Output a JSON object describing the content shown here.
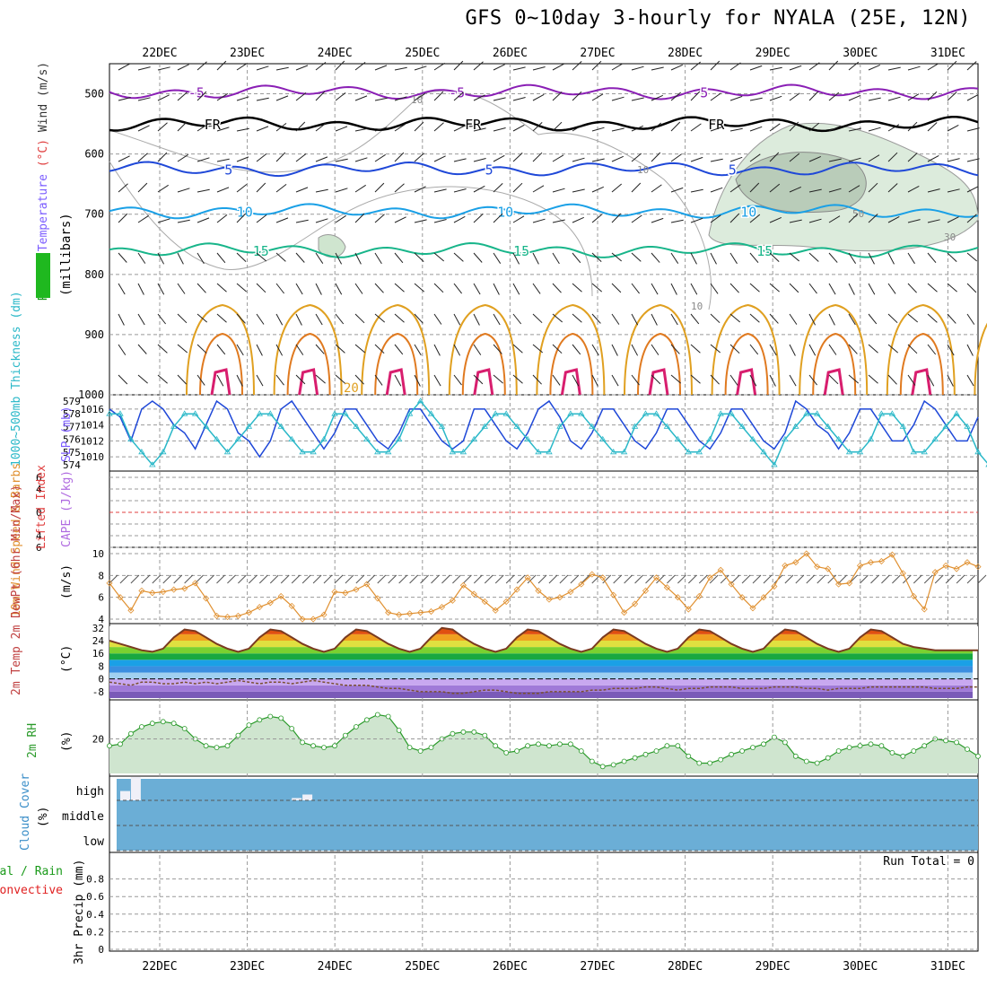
{
  "title": "GFS 0~10day 3-hourly for NYALA (25E, 12N)",
  "dates": [
    "22DEC",
    "23DEC",
    "24DEC",
    "25DEC",
    "26DEC",
    "27DEC",
    "28DEC",
    "29DEC",
    "30DEC",
    "31DEC"
  ],
  "colors": {
    "purple": "#8a1fb5",
    "black": "#000000",
    "blue": "#1f48d8",
    "cyan": "#1aa0e6",
    "green": "#18b58a",
    "orange": "#e0a020",
    "magenta": "#d81e6e",
    "contour_gray": "#aaaaaa",
    "rh_fill": "#cfe5cf",
    "cloud": "#6baed6"
  },
  "chart_data": [
    {
      "panel": "upper-air",
      "type": "line",
      "ylabel_parts": [
        {
          "text": "RH (%)",
          "color": "#1a9a1a"
        },
        {
          "text": "Temperature",
          "color": "#7b5cff"
        },
        {
          "text": "(°C)",
          "color": "#e04040"
        },
        {
          "text": "Wind (m/s)",
          "color": "#333333"
        }
      ],
      "ylabel2": "(millibars)",
      "y_axis": "pressure (mb)",
      "ylim": [
        1000,
        450
      ],
      "y_ticks": [
        500,
        600,
        700,
        800,
        900,
        1000
      ],
      "grid": true,
      "isotherms": [
        {
          "label": "-5",
          "level_mb": 497,
          "color": "#8a1fb5"
        },
        {
          "label": "FR",
          "level_mb": 550,
          "color": "#000000"
        },
        {
          "label": "5",
          "level_mb": 625,
          "color": "#1f48d8"
        },
        {
          "label": "10",
          "level_mb": 695,
          "color": "#1aa0e6"
        },
        {
          "label": "15",
          "level_mb": 760,
          "color": "#18b58a"
        }
      ],
      "surface_contour_labels": [
        "20"
      ],
      "rh_contour_labels": [
        "10",
        "10",
        "10",
        "30",
        "50"
      ]
    },
    {
      "panel": "thickness-slp",
      "type": "line",
      "ylabel_left": "1000~500mb Thickness (dm)",
      "ylabel_right": "SLP (mb)",
      "left_ticks": [
        574,
        575,
        576,
        577,
        578,
        579
      ],
      "right_ticks": [
        1010,
        1012,
        1014,
        1016
      ],
      "series": [
        {
          "name": "SLP",
          "axis": "right",
          "values": [
            1016,
            1015,
            1012,
            1016,
            1017,
            1016,
            1014,
            1013,
            1011,
            1014,
            1017,
            1016,
            1013,
            1012,
            1010,
            1012,
            1016,
            1017,
            1015,
            1013,
            1011,
            1013,
            1016,
            1016,
            1014,
            1012,
            1011,
            1013,
            1016,
            1016,
            1014,
            1012,
            1011,
            1012,
            1016,
            1016,
            1014,
            1012,
            1011,
            1013,
            1016,
            1017,
            1015,
            1012,
            1011,
            1013,
            1016,
            1016,
            1014,
            1012,
            1011,
            1013,
            1016,
            1016,
            1014,
            1012,
            1011,
            1013,
            1016,
            1016,
            1014,
            1012,
            1011,
            1013,
            1017,
            1016,
            1014,
            1013,
            1011,
            1013,
            1016,
            1016,
            1014,
            1012,
            1012,
            1014,
            1017,
            1016,
            1014,
            1012,
            1012,
            1015
          ]
        },
        {
          "name": "Thickness",
          "axis": "left",
          "values": [
            578,
            578,
            576,
            575,
            574,
            575,
            577,
            578,
            578,
            577,
            576,
            575,
            576,
            577,
            578,
            578,
            577,
            576,
            575,
            575,
            576,
            578,
            578,
            577,
            576,
            575,
            575,
            576,
            578,
            579,
            578,
            577,
            575,
            575,
            576,
            577,
            578,
            578,
            577,
            576,
            575,
            575,
            577,
            578,
            578,
            577,
            576,
            575,
            575,
            577,
            578,
            578,
            577,
            576,
            575,
            575,
            576,
            578,
            578,
            577,
            576,
            575,
            574,
            576,
            577,
            578,
            578,
            577,
            576,
            575,
            575,
            576,
            578,
            578,
            577,
            575,
            575,
            576,
            577,
            578,
            577,
            575,
            574,
            575
          ]
        }
      ]
    },
    {
      "panel": "stability",
      "type": "line",
      "ylabel_left": "Lifted Index",
      "ylabel_right": "CAPE (J/kg)",
      "y_ticks": [
        -6,
        -4,
        -2,
        0,
        2,
        4,
        6
      ],
      "series": [
        {
          "name": "Lifted Index",
          "values": []
        },
        {
          "name": "CAPE",
          "values": []
        }
      ]
    },
    {
      "panel": "wind10m",
      "type": "line",
      "ylabel": "10m Wind Speed & Barbs",
      "yunit": "(m/s)",
      "ylim": [
        4,
        10
      ],
      "y_ticks": [
        4,
        6,
        8,
        10
      ],
      "series": [
        {
          "name": "10m wind speed",
          "values": [
            7.3,
            6.0,
            4.8,
            6.6,
            6.4,
            6.5,
            6.7,
            6.8,
            7.3,
            5.9,
            4.3,
            4.2,
            4.3,
            4.6,
            5.1,
            5.5,
            6.1,
            5.2,
            4.0,
            4.0,
            4.4,
            6.5,
            6.4,
            6.7,
            7.2,
            5.9,
            4.6,
            4.4,
            4.5,
            4.6,
            4.7,
            5.1,
            5.7,
            7.1,
            6.3,
            5.6,
            4.8,
            5.6,
            6.7,
            7.8,
            6.6,
            5.8,
            6.0,
            6.5,
            7.2,
            8.1,
            7.8,
            6.2,
            4.6,
            5.4,
            6.6,
            7.8,
            6.9,
            6.0,
            4.9,
            6.1,
            7.8,
            8.5,
            7.2,
            6.0,
            5.0,
            6.0,
            7.0,
            8.9,
            9.2,
            10.0,
            8.8,
            8.6,
            7.2,
            7.3,
            8.9,
            9.2,
            9.3,
            9.9,
            8.2,
            6.1,
            4.9,
            8.3,
            8.9,
            8.6,
            9.2,
            8.8
          ]
        }
      ]
    },
    {
      "panel": "temp2m",
      "type": "line",
      "ylabel": "2m Temp 2m DewPt (6hr Min/Max)",
      "yunit": "(°C)",
      "ylim": [
        -12,
        33
      ],
      "y_ticks": [
        -8,
        0,
        8,
        16,
        24,
        32
      ],
      "series": [
        {
          "name": "2m Temp",
          "values": [
            24,
            22,
            20,
            18,
            17,
            19,
            26,
            31,
            30,
            26,
            22,
            19,
            17,
            19,
            26,
            31,
            30,
            26,
            22,
            19,
            17,
            19,
            26,
            31,
            30,
            26,
            22,
            19,
            17,
            19,
            26,
            32,
            31,
            26,
            22,
            19,
            17,
            19,
            26,
            31,
            30,
            26,
            22,
            19,
            17,
            19,
            26,
            31,
            30,
            26,
            22,
            19,
            17,
            19,
            26,
            31,
            30,
            26,
            22,
            19,
            17,
            19,
            26,
            31,
            30,
            26,
            22,
            19,
            17,
            19,
            26,
            31,
            30,
            26,
            22,
            20,
            19,
            18,
            18,
            18,
            18,
            18
          ]
        },
        {
          "name": "2m DewPt",
          "values": [
            -2,
            -3,
            -4,
            -2,
            -2,
            -3,
            -3,
            -2,
            -3,
            -2,
            -3,
            -2,
            -1,
            -2,
            -3,
            -2,
            -2,
            -3,
            -2,
            -1,
            -2,
            -3,
            -4,
            -4,
            -4,
            -5,
            -6,
            -6,
            -7,
            -8,
            -8,
            -8,
            -9,
            -9,
            -8,
            -7,
            -7,
            -8,
            -9,
            -9,
            -9,
            -8,
            -8,
            -8,
            -8,
            -7,
            -7,
            -6,
            -6,
            -6,
            -5,
            -5,
            -6,
            -7,
            -6,
            -6,
            -5,
            -5,
            -5,
            -6,
            -6,
            -6,
            -5,
            -5,
            -5,
            -6,
            -6,
            -7,
            -6,
            -6,
            -6,
            -5,
            -5,
            -5,
            -5,
            -5,
            -5,
            -6,
            -6,
            -6,
            -5,
            -5
          ]
        }
      ]
    },
    {
      "panel": "rh2m",
      "type": "area",
      "ylabel": "2m RH",
      "yunit": "(%)",
      "ylim": [
        0,
        40
      ],
      "y_ticks": [
        20
      ],
      "series": [
        {
          "name": "2m RH",
          "values": [
            16,
            17,
            23,
            27,
            29,
            30,
            29,
            26,
            20,
            16,
            15,
            16,
            22,
            28,
            31,
            33,
            32,
            26,
            18,
            16,
            15,
            16,
            22,
            27,
            31,
            34,
            33,
            25,
            15,
            13,
            15,
            20,
            23,
            24,
            24,
            22,
            16,
            12,
            13,
            16,
            17,
            16,
            17,
            17,
            13,
            7,
            4,
            5,
            7,
            9,
            11,
            13,
            16,
            16,
            10,
            6,
            6,
            8,
            11,
            13,
            15,
            17,
            21,
            18,
            10,
            7,
            6,
            9,
            13,
            15,
            16,
            17,
            16,
            12,
            10,
            13,
            16,
            20,
            19,
            18,
            14,
            10
          ]
        }
      ]
    },
    {
      "panel": "cloud",
      "type": "bar",
      "ylabel": "Cloud Cover",
      "yunit": "(%)",
      "levels": [
        "high",
        "middle",
        "low"
      ],
      "series": [
        {
          "name": "high cloud",
          "values": [
            0,
            40,
            100,
            0,
            0,
            0,
            0,
            0,
            0,
            0,
            0,
            0,
            0,
            0,
            0,
            0,
            0,
            10,
            25,
            0,
            0,
            0,
            0,
            0,
            0,
            0,
            0,
            0,
            0,
            0,
            0,
            0,
            0,
            0,
            0,
            0,
            0,
            0,
            0,
            0,
            0,
            0,
            0,
            0,
            0,
            0,
            0,
            0,
            0,
            0,
            0,
            0,
            0,
            0,
            0,
            0,
            0,
            0,
            0,
            0,
            0,
            0,
            0,
            0,
            0,
            0,
            0,
            0,
            0,
            0,
            0,
            0,
            0,
            0,
            0,
            0,
            0,
            0,
            0,
            0,
            0,
            0
          ]
        }
      ]
    },
    {
      "panel": "precip",
      "type": "bar",
      "ylabel": "3hr Precip (mm)",
      "ylabel_left_parts": [
        {
          "text": "Total / Rain",
          "color": "#1a9a1a"
        },
        {
          "text": "Convective",
          "color": "#e02020"
        }
      ],
      "annotation": "Run Total = 0",
      "ylim": [
        0,
        1
      ],
      "y_ticks": [
        0,
        0.2,
        0.4,
        0.6,
        0.8
      ],
      "series": [
        {
          "name": "Total",
          "values": []
        }
      ]
    }
  ]
}
